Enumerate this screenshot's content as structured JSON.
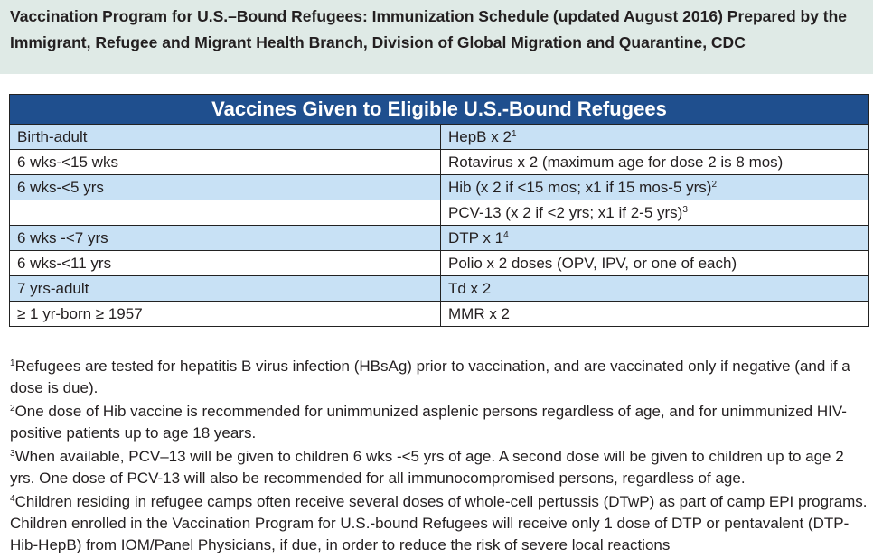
{
  "header": {
    "title": "Vaccination Program for U.S.–Bound Refugees: Immunization Schedule (updated August 2016) Prepared by the Immigrant, Refugee and Migrant Health Branch, Division of Global Migration and Quarantine, CDC"
  },
  "table": {
    "title": "Vaccines Given to Eligible U.S.-Bound Refugees",
    "rows": [
      {
        "age": "Birth-adult",
        "vaccine": "HepB x 2",
        "sup": "1"
      },
      {
        "age": "6 wks-<15 wks",
        "vaccine": "Rotavirus x 2 (maximum age for dose 2 is 8 mos)"
      },
      {
        "age": "6 wks-<5 yrs",
        "vaccine": "Hib (x 2 if <15 mos; x1 if 15 mos-5 yrs)",
        "sup": "2"
      },
      {
        "age": null,
        "vaccine": "PCV-13 (x 2 if <2 yrs; x1 if 2-5 yrs)",
        "sup": "3"
      },
      {
        "age": "6 wks -<7 yrs",
        "vaccine": "DTP x 1",
        "sup": "4"
      },
      {
        "age": "6 wks-<11 yrs",
        "vaccine": "Polio x 2 doses (OPV, IPV, or one of each)"
      },
      {
        "age": "7 yrs-adult",
        "vaccine": "Td x 2"
      },
      {
        "age": "≥ 1 yr-born ≥ 1957",
        "vaccine": "MMR x 2"
      }
    ]
  },
  "footnotes": [
    {
      "mark": "1",
      "text": "Refugees are tested for hepatitis B virus infection (HBsAg) prior to vaccination, and are vaccinated only if negative (and if a dose is due)."
    },
    {
      "mark": "2",
      "text": "One dose of Hib vaccine is recommended for unimmunized asplenic persons regardless of age, and for unimmunized HIV-positive patients up to age 18 years."
    },
    {
      "mark": "3",
      "text": "When available, PCV–13 will be given to children 6 wks -<5 yrs of age.  A second dose will be given to children up to age 2 yrs.  One dose of PCV-13 will also be recommended for all immunocompromised persons, regardless of age."
    },
    {
      "mark": "4",
      "text": "Children residing in refugee camps often receive several doses of whole-cell pertussis (DTwP) as part of camp EPI programs.  Children enrolled in the Vaccination Program for U.S.-bound Refugees will receive only 1 dose of DTP or pentavalent (DTP-Hib-HepB) from IOM/Panel Physicians, if due, in order to reduce the risk of severe local reactions"
    }
  ]
}
